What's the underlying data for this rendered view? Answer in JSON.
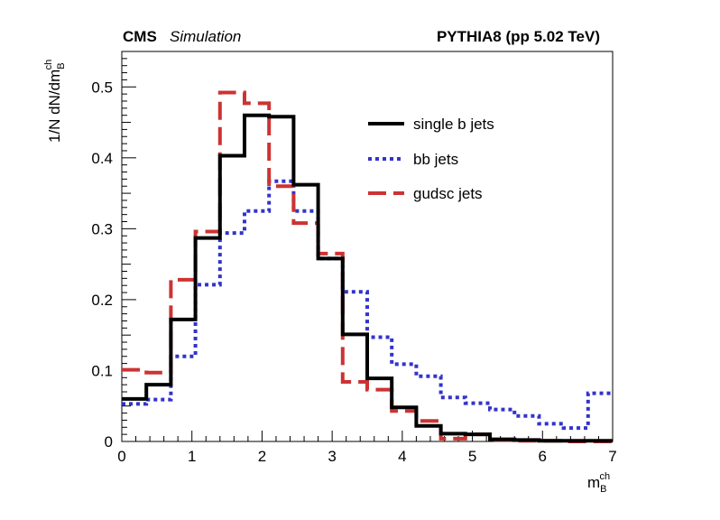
{
  "header": {
    "experiment": "CMS",
    "status": "Simulation",
    "generator": "PYTHIA8 (pp 5.02 TeV)"
  },
  "chart_data": {
    "type": "line",
    "style": "step-histogram",
    "xlabel_main": "m",
    "xlabel_sub": "B",
    "xlabel_sup": "ch",
    "ylabel_main": "1/N dN/dm",
    "ylabel_sub": "B",
    "ylabel_sup": "ch",
    "xlim": [
      0,
      7
    ],
    "ylim": [
      0,
      0.55
    ],
    "x_ticks": [
      0,
      1,
      2,
      3,
      4,
      5,
      6,
      7
    ],
    "x_tick_labels": [
      "0",
      "1",
      "2",
      "3",
      "4",
      "5",
      "6",
      "7"
    ],
    "y_ticks": [
      0,
      0.1,
      0.2,
      0.3,
      0.4,
      0.5
    ],
    "y_tick_labels": [
      "0",
      "0.1",
      "0.2",
      "0.3",
      "0.4",
      "0.5"
    ],
    "grid": false,
    "legend_position": "top-right",
    "bin_edges": [
      0,
      0.35,
      0.7,
      1.05,
      1.4,
      1.75,
      2.1,
      2.45,
      2.8,
      3.15,
      3.5,
      3.85,
      4.2,
      4.55,
      4.9,
      5.25,
      5.6,
      5.95,
      6.3,
      6.65,
      7.0
    ],
    "series": [
      {
        "name": "single b jets",
        "color": "#000000",
        "dash": "solid",
        "values": [
          0.06,
          0.08,
          0.172,
          0.287,
          0.403,
          0.46,
          0.458,
          0.362,
          0.258,
          0.151,
          0.089,
          0.048,
          0.022,
          0.011,
          0.01,
          0.003,
          0.002,
          0.001,
          0.001,
          0.001
        ]
      },
      {
        "name": "bb jets",
        "color": "#3333cc",
        "dash": "dotted",
        "values": [
          0.053,
          0.059,
          0.12,
          0.221,
          0.294,
          0.325,
          0.367,
          0.325,
          0.258,
          0.211,
          0.147,
          0.109,
          0.092,
          0.062,
          0.054,
          0.045,
          0.036,
          0.025,
          0.019,
          0.068
        ]
      },
      {
        "name": "gudsc jets",
        "color": "#cc3333",
        "dash": "dashed",
        "values": [
          0.101,
          0.097,
          0.228,
          0.296,
          0.492,
          0.477,
          0.36,
          0.308,
          0.265,
          0.084,
          0.073,
          0.043,
          0.029,
          0.004,
          0.01,
          0.002,
          0.001,
          0.001,
          0.0,
          0.0
        ]
      }
    ]
  }
}
